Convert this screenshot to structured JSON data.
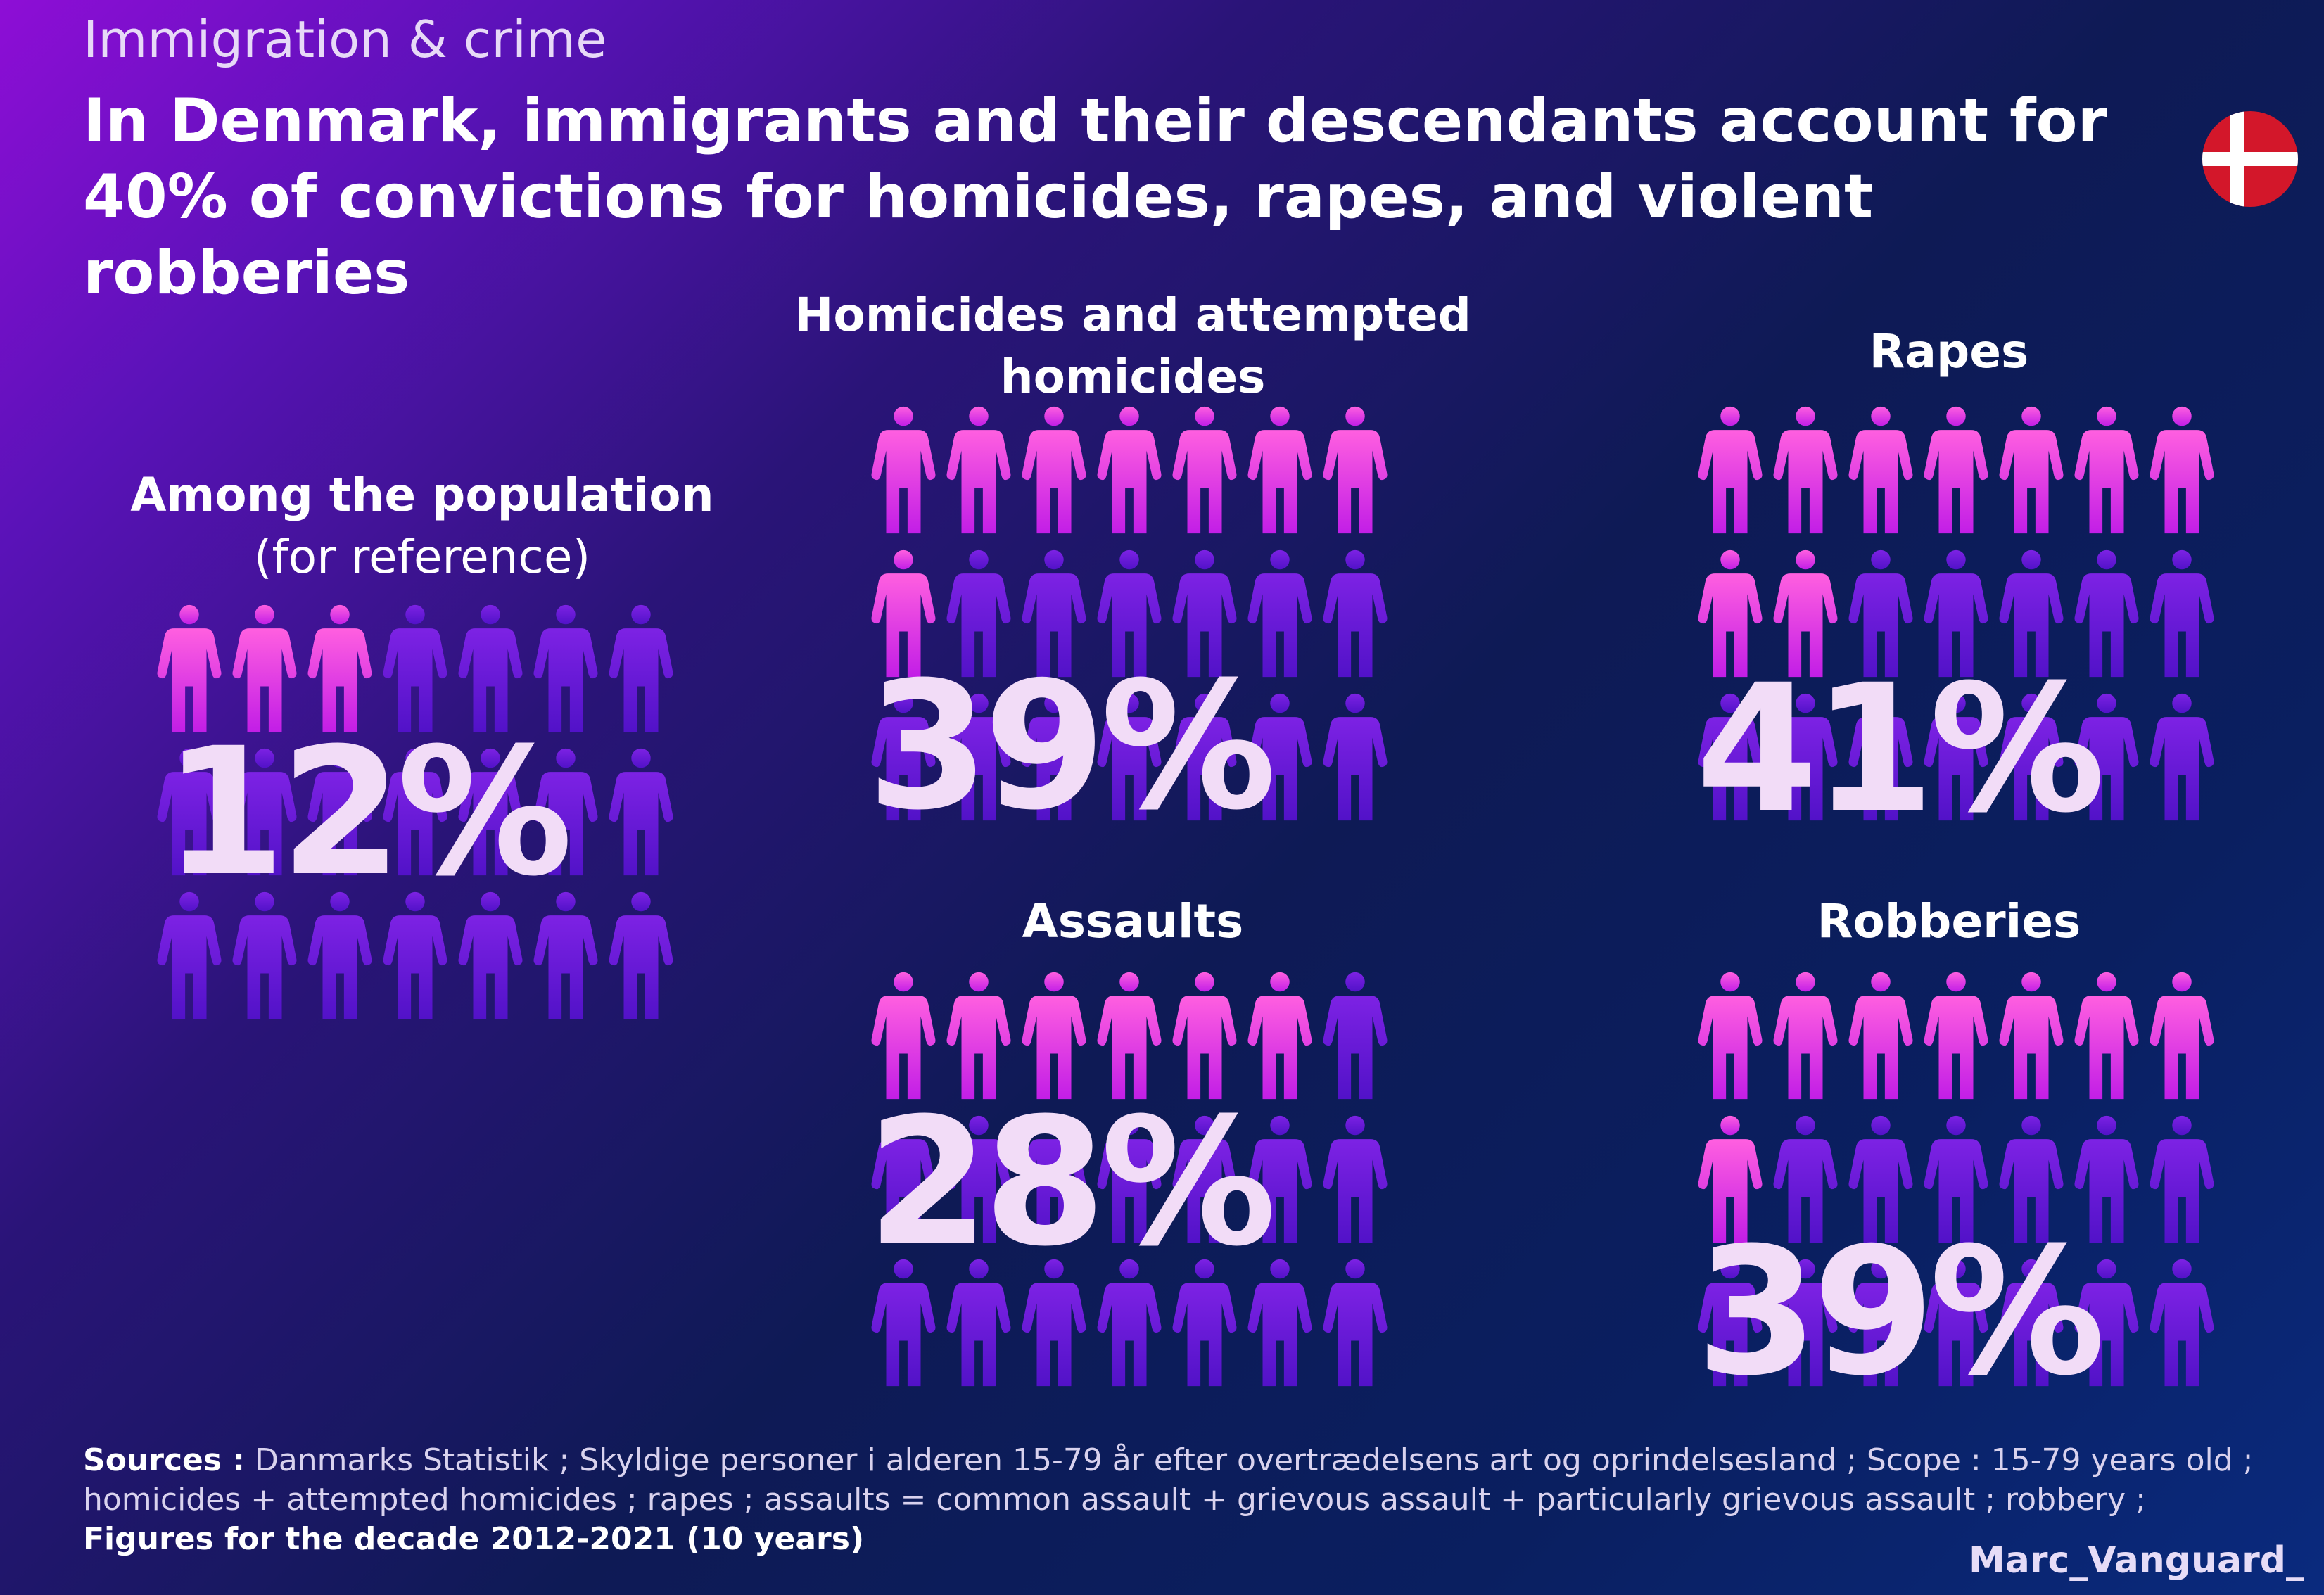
{
  "kicker": "Immigration & crime",
  "headline": "In Denmark, immigrants and their descendants account for 40% of convictions for homicides, rapes, and violent robberies",
  "colors": {
    "highlight_top": "#ff4fd8",
    "highlight_bottom": "#c21ee6",
    "base_top": "#7a1fe0",
    "base_bottom": "#5412c9",
    "percent_text": "#f2dcf7"
  },
  "flag": {
    "icon": "denmark-flag-icon",
    "red": "#d3172a",
    "white": "#ffffff"
  },
  "chart_data": {
    "type": "pictogram",
    "unit": "share of convictions (%)",
    "icons_per_chart": 21,
    "panels": [
      {
        "id": "population",
        "label": "Among the population",
        "sublabel": "(for reference)",
        "value": 12,
        "value_text": "12%",
        "highlighted_icons": 3
      },
      {
        "id": "homicides",
        "label": "Homicides and attempted homicides",
        "sublabel": "",
        "value": 39,
        "value_text": "39%",
        "highlighted_icons": 8
      },
      {
        "id": "rapes",
        "label": "Rapes",
        "sublabel": "",
        "value": 41,
        "value_text": "41%",
        "highlighted_icons": 9
      },
      {
        "id": "assaults",
        "label": "Assaults",
        "sublabel": "",
        "value": 28,
        "value_text": "28%",
        "highlighted_icons": 6
      },
      {
        "id": "robberies",
        "label": "Robberies",
        "sublabel": "",
        "value": 39,
        "value_text": "39%",
        "highlighted_icons": 8
      }
    ]
  },
  "sources": {
    "label": "Sources :",
    "text": " Danmarks Statistik ; Skyldige personer i alderen 15-79 år efter overtrædelsens art og oprindelsesland ; Scope  : 15-79 years old ; homicides + attempted homicides ;  rapes ; assaults  = common assault + grievous assault + particularly grievous assault ; robbery ; ",
    "emphasis": "Figures for the decade 2012-2021 (10 years)"
  },
  "credit": "Marc_Vanguard_"
}
